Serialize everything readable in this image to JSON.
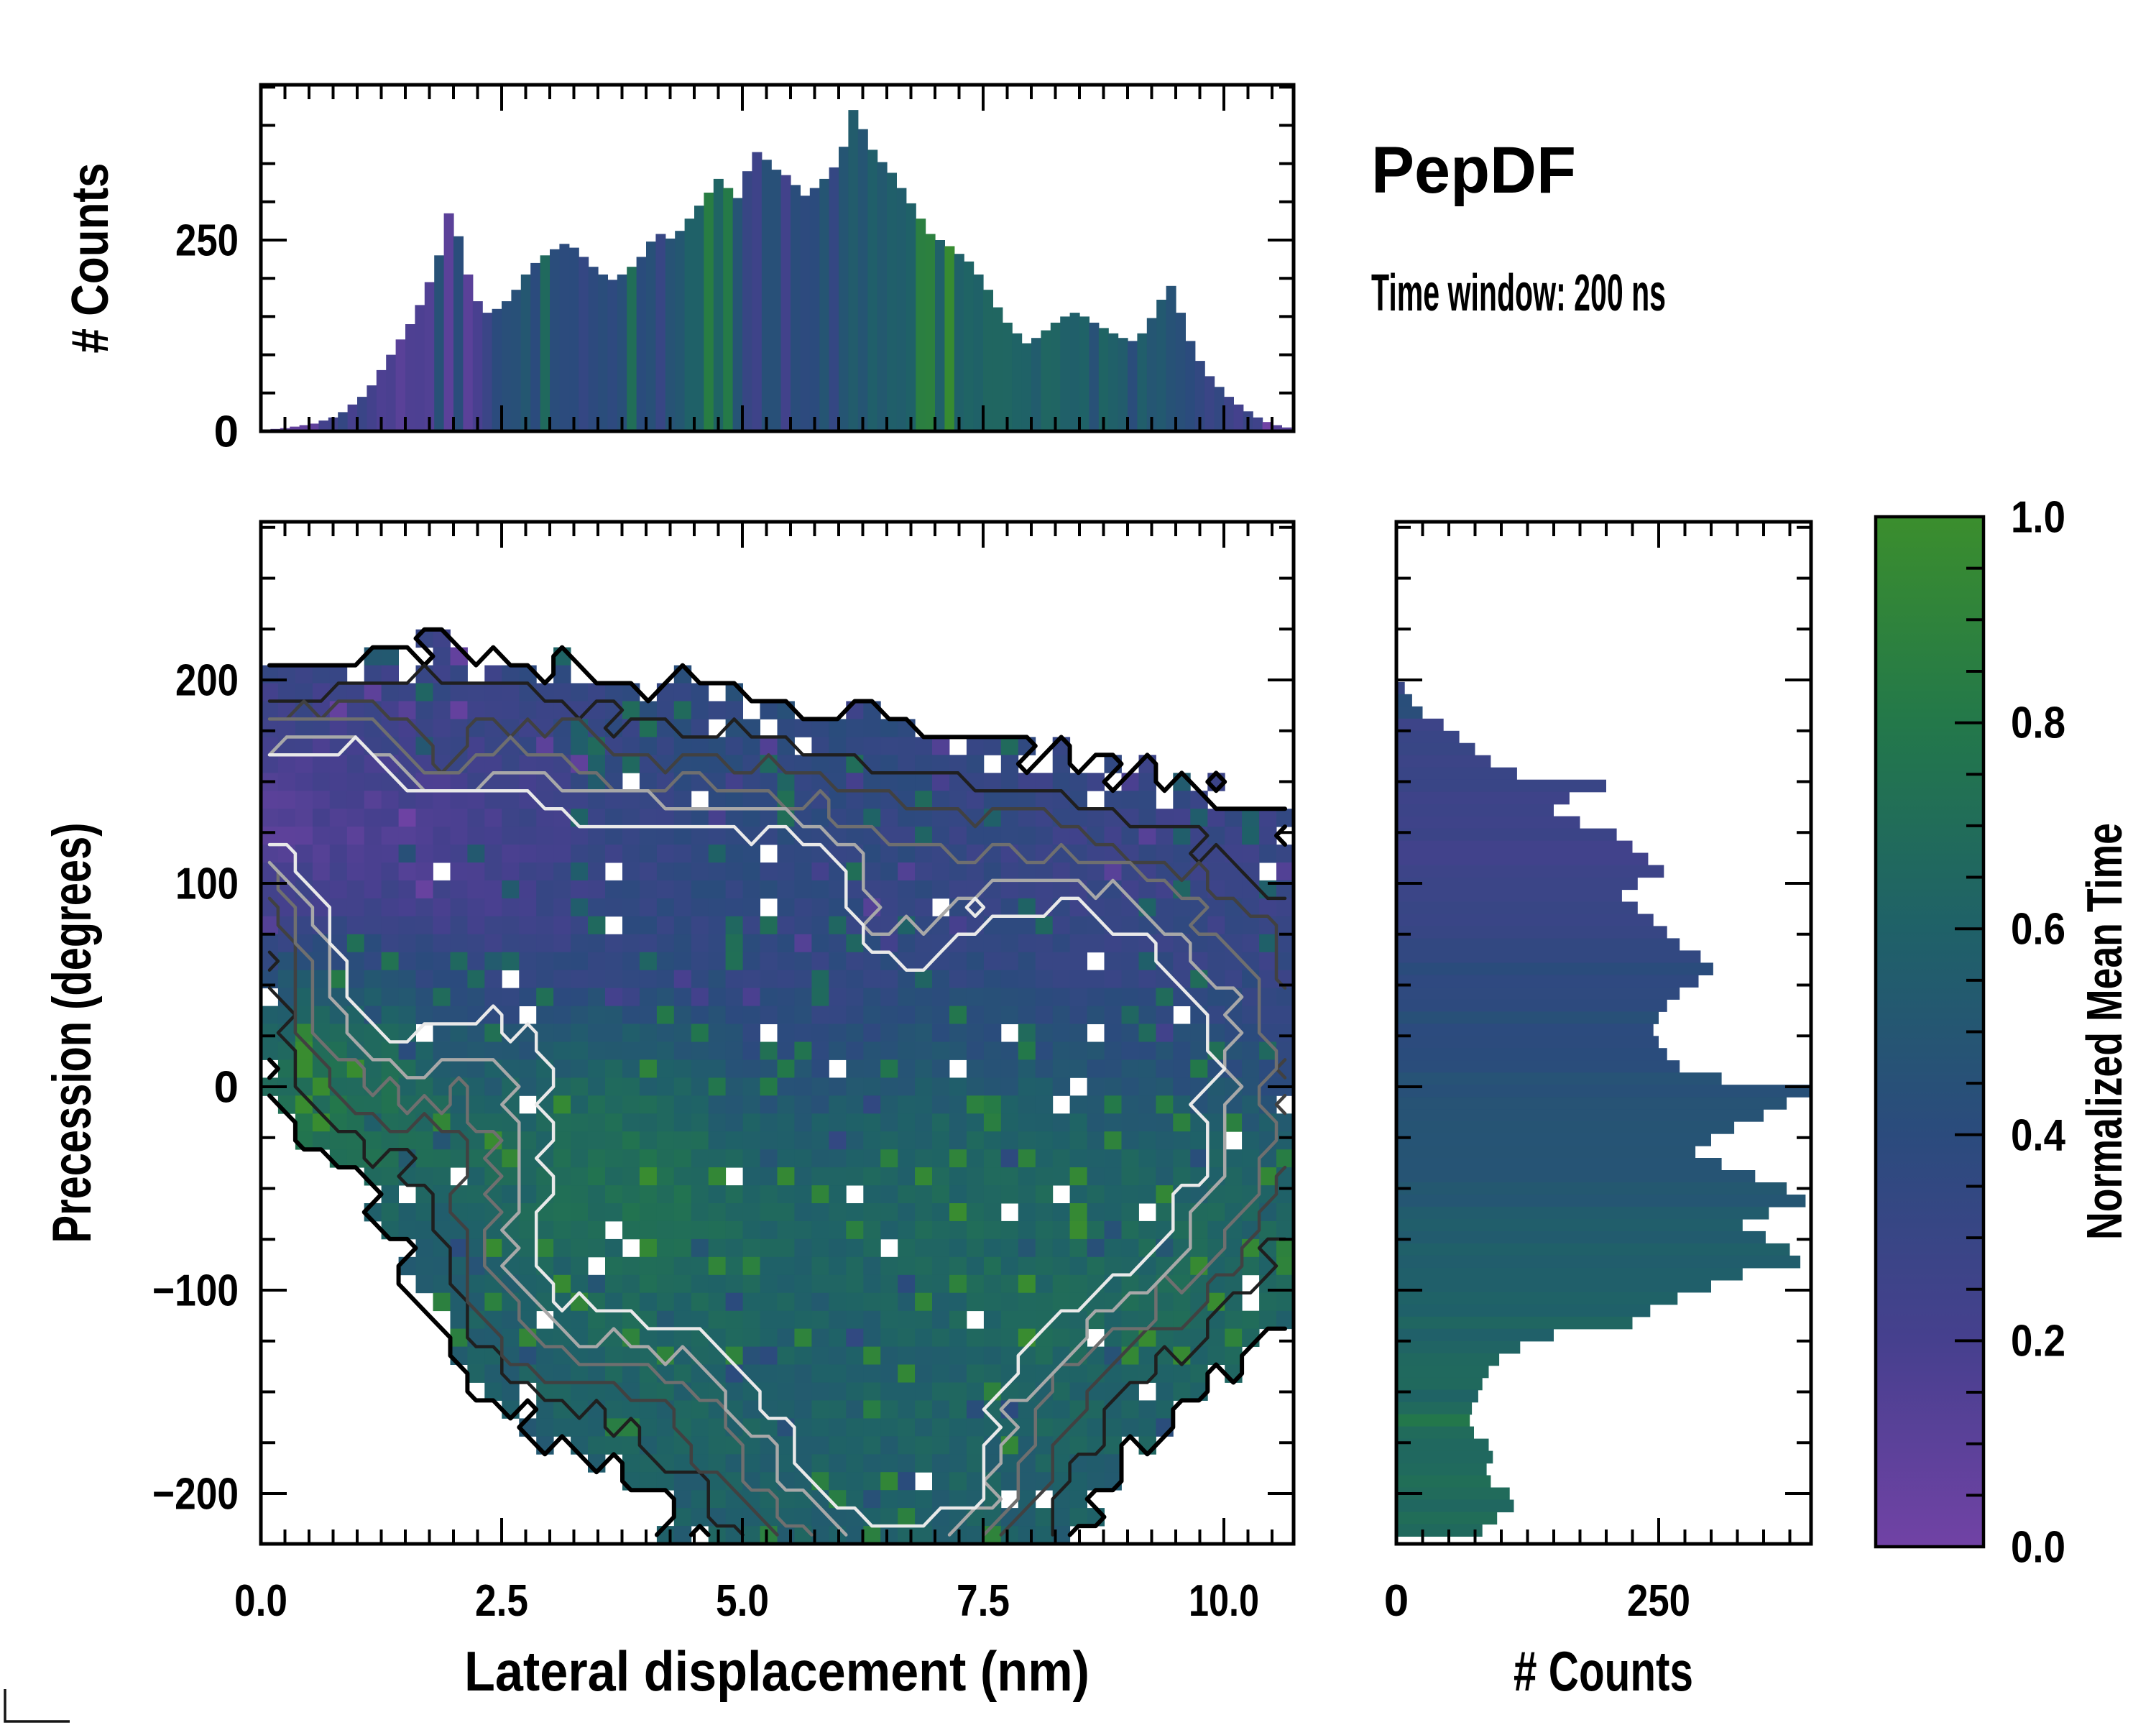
{
  "header": {
    "title": "PepDF",
    "subtitle": "Time window: 200 ns"
  },
  "colors": {
    "foreground": "#000000",
    "background": "#ffffff",
    "colormap_stops": [
      [
        0.0,
        "#7142a5"
      ],
      [
        0.2,
        "#46408e"
      ],
      [
        0.4,
        "#2b4b7d"
      ],
      [
        0.6,
        "#1f6168"
      ],
      [
        0.8,
        "#23784a"
      ],
      [
        1.0,
        "#3b8e2d"
      ]
    ],
    "contour_levels": [
      0.22,
      0.38,
      0.52,
      0.66,
      0.8,
      0.93
    ],
    "contour_colors": [
      "#000000",
      "#1f1f1f",
      "#414141",
      "#6f6f6f",
      "#a8a8a8",
      "#e9e9e9"
    ],
    "contour_widths": [
      6,
      4.5,
      4.5,
      4.5,
      4.5,
      4.5
    ]
  },
  "chart_data": {
    "top_histogram": {
      "type": "bar",
      "ylabel": "# Counts",
      "ytick_labels": [
        "0",
        "250"
      ],
      "yticks": [
        0,
        250
      ],
      "ytick_minor_step": 50,
      "ylim": [
        0,
        453
      ],
      "xlim": [
        0,
        10.72
      ],
      "bin_width": 0.1,
      "first_bin_center": 0.05,
      "values": [
        2,
        3,
        4,
        6,
        8,
        10,
        14,
        18,
        25,
        35,
        45,
        60,
        80,
        100,
        120,
        140,
        165,
        195,
        230,
        285,
        255,
        205,
        170,
        155,
        160,
        170,
        185,
        205,
        220,
        230,
        238,
        245,
        240,
        228,
        215,
        205,
        198,
        205,
        215,
        228,
        248,
        258,
        252,
        262,
        278,
        295,
        312,
        330,
        318,
        305,
        340,
        365,
        355,
        342,
        335,
        322,
        308,
        318,
        330,
        345,
        372,
        420,
        395,
        368,
        352,
        338,
        318,
        298,
        278,
        258,
        250,
        242,
        232,
        222,
        205,
        185,
        162,
        142,
        128,
        115,
        122,
        132,
        142,
        150,
        155,
        150,
        142,
        135,
        128,
        122,
        118,
        128,
        148,
        172,
        190,
        155,
        118,
        92,
        72,
        58,
        45,
        35,
        26,
        18,
        12,
        8,
        5
      ],
      "color_norm_points": [
        [
          0,
          0.05
        ],
        [
          0.5,
          0.07
        ],
        [
          0.9,
          0.4
        ],
        [
          1.3,
          0.18
        ],
        [
          1.8,
          0.13
        ],
        [
          2.2,
          0.16
        ],
        [
          2.6,
          0.5
        ],
        [
          3.0,
          0.4
        ],
        [
          3.6,
          0.36
        ],
        [
          4.2,
          0.44
        ],
        [
          4.6,
          0.65
        ],
        [
          5.0,
          0.44
        ],
        [
          5.6,
          0.42
        ],
        [
          6.0,
          0.47
        ],
        [
          6.5,
          0.58
        ],
        [
          7.0,
          0.64
        ],
        [
          7.6,
          0.61
        ],
        [
          8.2,
          0.6
        ],
        [
          8.8,
          0.62
        ],
        [
          9.2,
          0.52
        ],
        [
          9.6,
          0.4
        ],
        [
          10.1,
          0.28
        ],
        [
          10.7,
          0.12
        ]
      ]
    },
    "main": {
      "type": "heatmap",
      "xlabel": "Lateral displacement (nm)",
      "ylabel": "Precession (degrees)",
      "xtick_labels": [
        "0.0",
        "2.5",
        "5.0",
        "7.5",
        "10.0"
      ],
      "xticks": [
        0,
        2.5,
        5,
        7.5,
        10
      ],
      "xtick_minor_step": 0.25,
      "ytick_labels": [
        "200",
        "100",
        "0",
        "−100",
        "−200"
      ],
      "yticks": [
        200,
        100,
        0,
        -100,
        -200
      ],
      "ytick_minor_step": 25,
      "xlim": [
        0,
        10.72
      ],
      "ylim": [
        -225,
        278
      ],
      "grid_nx": 60,
      "grid_ny": 57,
      "seed": 42,
      "noise_seed": 99,
      "noise_amp": 0.12,
      "mask_level": 0.22,
      "hole_prob_edge": 0.12,
      "hole_prob_core": 0.02,
      "edge_density": 0.34,
      "value_jitter": 0.12,
      "speck_prob": 0.07,
      "speck_boost": 0.3,
      "density_lobes": [
        [
          2.0,
          115,
          1.15,
          55,
          0.95
        ],
        [
          0.85,
          140,
          0.7,
          33,
          0.75
        ],
        [
          1.2,
          30,
          0.75,
          48,
          0.6
        ],
        [
          4.8,
          70,
          1.6,
          66,
          1.1
        ],
        [
          8.3,
          40,
          1.9,
          66,
          1.05
        ],
        [
          5.0,
          -40,
          1.6,
          62,
          1.15
        ],
        [
          7.9,
          -60,
          1.7,
          56,
          1.0
        ],
        [
          3.1,
          -95,
          0.85,
          42,
          0.55
        ],
        [
          6.3,
          -165,
          1.4,
          56,
          0.85
        ],
        [
          6.8,
          -200,
          0.85,
          30,
          0.45
        ],
        [
          -0.2,
          150,
          0.5,
          30,
          0.5
        ],
        [
          4.35,
          8,
          0.4,
          18,
          -0.4
        ],
        [
          1.75,
          158,
          0.4,
          16,
          -0.5
        ],
        [
          6.55,
          68,
          0.62,
          30,
          -0.6
        ]
      ],
      "value_zones": [
        [
          1.4,
          120,
          1.5,
          55,
          0.08,
          3.0
        ],
        [
          2.2,
          180,
          1.8,
          25,
          0.42,
          1.8
        ],
        [
          0.9,
          25,
          0.8,
          40,
          0.88,
          2.0
        ],
        [
          3.2,
          85,
          1.2,
          50,
          0.33,
          1.5
        ],
        [
          5.0,
          125,
          1.6,
          45,
          0.4,
          1.5
        ],
        [
          5.3,
          38,
          0.8,
          32,
          0.16,
          1.5
        ],
        [
          8.8,
          55,
          2.2,
          70,
          0.26,
          2.6
        ],
        [
          7.6,
          -45,
          2.2,
          55,
          0.78,
          2.6
        ],
        [
          4.3,
          -40,
          1.25,
          60,
          0.82,
          2.0
        ],
        [
          5.45,
          -8,
          0.7,
          30,
          0.22,
          1.2
        ],
        [
          5.8,
          -95,
          1.0,
          40,
          0.38,
          1.3
        ],
        [
          6.6,
          -170,
          1.7,
          60,
          0.62,
          2.0
        ],
        [
          2.9,
          -95,
          0.9,
          40,
          0.55,
          1.5
        ],
        [
          9.5,
          -85,
          1.2,
          45,
          0.66,
          1.6
        ],
        [
          6.9,
          -235,
          1.0,
          40,
          0.58,
          1.5
        ]
      ],
      "value_background": [
        0.45,
        0.25
      ]
    },
    "right_histogram": {
      "type": "bar",
      "xlabel": "# Counts",
      "xtick_labels": [
        "0",
        "250"
      ],
      "xticks": [
        0,
        250
      ],
      "xtick_minor_step": 25,
      "xlim": [
        0,
        395
      ],
      "bin_width_deg": 6,
      "first_bin_center": 196,
      "values": [
        8,
        15,
        25,
        45,
        60,
        75,
        90,
        115,
        200,
        165,
        150,
        175,
        210,
        225,
        240,
        255,
        230,
        215,
        230,
        245,
        258,
        270,
        290,
        302,
        288,
        270,
        258,
        250,
        245,
        250,
        258,
        270,
        310,
        395,
        372,
        350,
        322,
        300,
        285,
        310,
        342,
        372,
        390,
        355,
        330,
        352,
        375,
        385,
        330,
        300,
        268,
        242,
        225,
        150,
        118,
        98,
        88,
        82,
        78,
        72,
        70,
        74,
        88,
        92,
        86,
        90,
        108,
        112,
        96,
        82
      ],
      "color_norm_points": [
        [
          -221,
          0.7
        ],
        [
          -200,
          0.68
        ],
        [
          -160,
          0.66
        ],
        [
          -120,
          0.62
        ],
        [
          -90,
          0.58
        ],
        [
          -60,
          0.53
        ],
        [
          -30,
          0.48
        ],
        [
          0,
          0.45
        ],
        [
          20,
          0.43
        ],
        [
          60,
          0.38
        ],
        [
          95,
          0.3
        ],
        [
          120,
          0.26
        ],
        [
          150,
          0.29
        ],
        [
          199,
          0.3
        ]
      ]
    },
    "colorbar": {
      "label": "Normalized Mean Time",
      "tick_labels": [
        "1.0",
        "0.8",
        "0.6",
        "0.4",
        "0.2",
        "0.0"
      ],
      "ticks": [
        1.0,
        0.8,
        0.6,
        0.4,
        0.2,
        0.0
      ],
      "minor_step": 0.05,
      "range": [
        0,
        1
      ]
    }
  }
}
